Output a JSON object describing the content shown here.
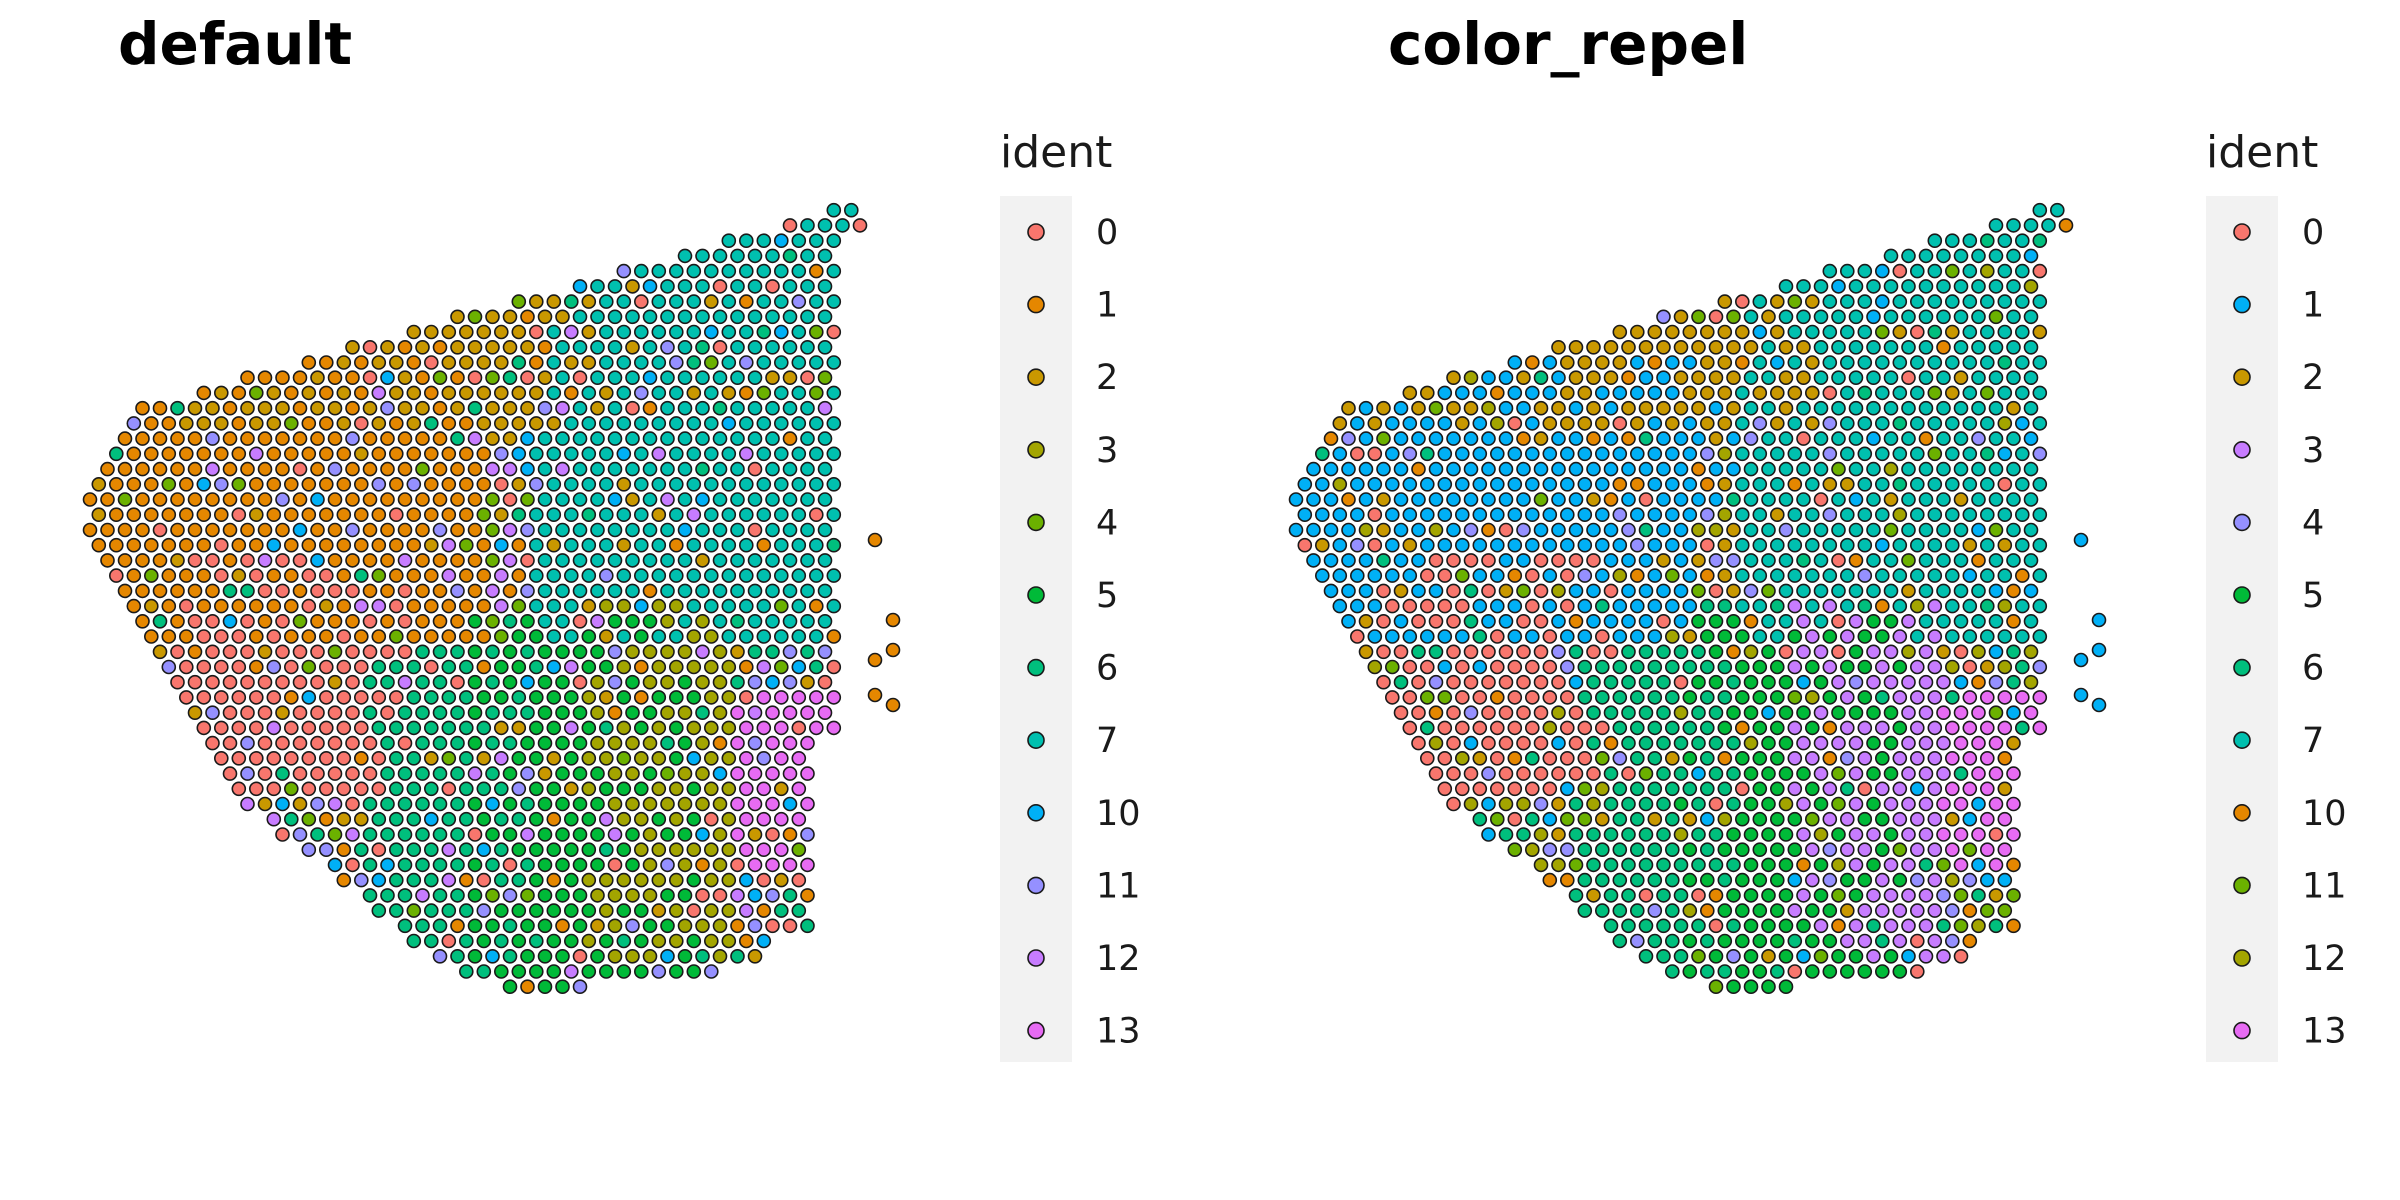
{
  "chart_data": [
    {
      "type": "scatter",
      "title": "default",
      "legend": {
        "title": "ident",
        "placement": "right",
        "entries": [
          {
            "label": "0",
            "color": "#F8766D"
          },
          {
            "label": "1",
            "color": "#E58700"
          },
          {
            "label": "2",
            "color": "#C99800"
          },
          {
            "label": "3",
            "color": "#A3A500"
          },
          {
            "label": "4",
            "color": "#6BB100"
          },
          {
            "label": "5",
            "color": "#00BA38"
          },
          {
            "label": "6",
            "color": "#00BF7D"
          },
          {
            "label": "7",
            "color": "#00C0AF"
          },
          {
            "label": "10",
            "color": "#00B0F6"
          },
          {
            "label": "11",
            "color": "#9590FF"
          },
          {
            "label": "12",
            "color": "#C77CFF"
          },
          {
            "label": "13",
            "color": "#E76BF3"
          }
        ]
      },
      "grid": false,
      "axes": false,
      "regions": [
        {
          "ident": "5",
          "x": [
            0.48,
            0.76
          ],
          "y": [
            0.52,
            1.0
          ]
        },
        {
          "ident": "3",
          "x": [
            0.62,
            0.8
          ],
          "y": [
            0.5,
            0.95
          ]
        },
        {
          "ident": "13",
          "x": [
            0.8,
            0.95
          ],
          "y": [
            0.62,
            0.85
          ]
        },
        {
          "ident": "6",
          "x": [
            0.35,
            0.55
          ],
          "y": [
            0.55,
            1.0
          ]
        },
        {
          "ident": "7",
          "x": [
            0.55,
            1.0
          ],
          "y": [
            0.0,
            0.55
          ]
        },
        {
          "ident": "0",
          "x": [
            0.1,
            0.4
          ],
          "y": [
            0.45,
            0.75
          ]
        },
        {
          "ident": "1",
          "x": [
            0.0,
            0.5
          ],
          "y": [
            0.2,
            0.55
          ]
        },
        {
          "ident": "2",
          "x": [
            0.0,
            0.65
          ],
          "y": [
            0.0,
            0.3
          ]
        }
      ],
      "scattered_idents": [
        "0",
        "1",
        "2",
        "4",
        "6",
        "10",
        "11",
        "12"
      ]
    },
    {
      "type": "scatter",
      "title": "color_repel",
      "legend": {
        "title": "ident",
        "placement": "right",
        "entries": [
          {
            "label": "0",
            "color": "#F8766D"
          },
          {
            "label": "1",
            "color": "#00B0F6"
          },
          {
            "label": "2",
            "color": "#C99800"
          },
          {
            "label": "3",
            "color": "#C77CFF"
          },
          {
            "label": "4",
            "color": "#9590FF"
          },
          {
            "label": "5",
            "color": "#00BA38"
          },
          {
            "label": "6",
            "color": "#00BF7D"
          },
          {
            "label": "7",
            "color": "#00C0AF"
          },
          {
            "label": "10",
            "color": "#E58700"
          },
          {
            "label": "11",
            "color": "#6BB100"
          },
          {
            "label": "12",
            "color": "#A3A500"
          },
          {
            "label": "13",
            "color": "#E76BF3"
          }
        ]
      },
      "grid": false,
      "axes": false,
      "regions": [
        {
          "ident": "5",
          "x": [
            0.48,
            0.76
          ],
          "y": [
            0.52,
            1.0
          ]
        },
        {
          "ident": "3",
          "x": [
            0.62,
            0.82
          ],
          "y": [
            0.5,
            0.95
          ]
        },
        {
          "ident": "13",
          "x": [
            0.8,
            0.95
          ],
          "y": [
            0.62,
            0.85
          ]
        },
        {
          "ident": "6",
          "x": [
            0.35,
            0.55
          ],
          "y": [
            0.55,
            1.0
          ]
        },
        {
          "ident": "7",
          "x": [
            0.55,
            1.0
          ],
          "y": [
            0.0,
            0.55
          ]
        },
        {
          "ident": "0",
          "x": [
            0.1,
            0.4
          ],
          "y": [
            0.45,
            0.75
          ]
        },
        {
          "ident": "1",
          "x": [
            0.0,
            0.5
          ],
          "y": [
            0.2,
            0.55
          ]
        },
        {
          "ident": "2",
          "x": [
            0.0,
            0.65
          ],
          "y": [
            0.0,
            0.3
          ]
        }
      ],
      "scattered_idents": [
        "0",
        "1",
        "2",
        "4",
        "6",
        "10",
        "11",
        "12"
      ]
    }
  ]
}
